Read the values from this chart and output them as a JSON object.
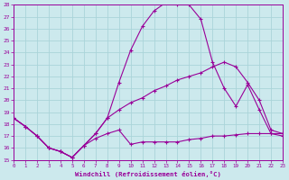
{
  "xlabel": "Windchill (Refroidissement éolien,°C)",
  "xlim": [
    0,
    23
  ],
  "ylim": [
    15,
    28
  ],
  "xticks": [
    0,
    1,
    2,
    3,
    4,
    5,
    6,
    7,
    8,
    9,
    10,
    11,
    12,
    13,
    14,
    15,
    16,
    17,
    18,
    19,
    20,
    21,
    22,
    23
  ],
  "yticks": [
    15,
    16,
    17,
    18,
    19,
    20,
    21,
    22,
    23,
    24,
    25,
    26,
    27,
    28
  ],
  "background_color": "#cce9ed",
  "grid_color": "#aad4d9",
  "line_color": "#990099",
  "line1_x": [
    0,
    1,
    2,
    3,
    4,
    5,
    6,
    7,
    8,
    9,
    10,
    11,
    12,
    13,
    14,
    15,
    16,
    17,
    18,
    19,
    20,
    21,
    22,
    23
  ],
  "line1_y": [
    18.5,
    17.8,
    17.0,
    16.0,
    15.7,
    15.2,
    16.2,
    17.2,
    18.5,
    21.5,
    24.2,
    26.2,
    27.5,
    28.2,
    28.0,
    28.0,
    26.8,
    23.2,
    21.0,
    19.5,
    21.3,
    19.2,
    17.2,
    17.0
  ],
  "line2_x": [
    0,
    1,
    2,
    3,
    4,
    5,
    6,
    7,
    8,
    9,
    10,
    11,
    12,
    13,
    14,
    15,
    16,
    17,
    18,
    19,
    20,
    21,
    22,
    23
  ],
  "line2_y": [
    18.5,
    17.8,
    17.0,
    16.0,
    15.7,
    15.2,
    16.2,
    17.2,
    18.5,
    19.2,
    19.8,
    20.2,
    20.8,
    21.2,
    21.7,
    22.0,
    22.3,
    22.8,
    23.2,
    22.8,
    21.5,
    20.0,
    17.5,
    17.2
  ],
  "line3_x": [
    0,
    1,
    2,
    3,
    4,
    5,
    6,
    7,
    8,
    9,
    10,
    11,
    12,
    13,
    14,
    15,
    16,
    17,
    18,
    19,
    20,
    21,
    22,
    23
  ],
  "line3_y": [
    18.5,
    17.8,
    17.0,
    16.0,
    15.7,
    15.2,
    16.2,
    16.8,
    17.2,
    17.5,
    16.3,
    16.5,
    16.5,
    16.5,
    16.5,
    16.7,
    16.8,
    17.0,
    17.0,
    17.1,
    17.2,
    17.2,
    17.2,
    17.2
  ]
}
